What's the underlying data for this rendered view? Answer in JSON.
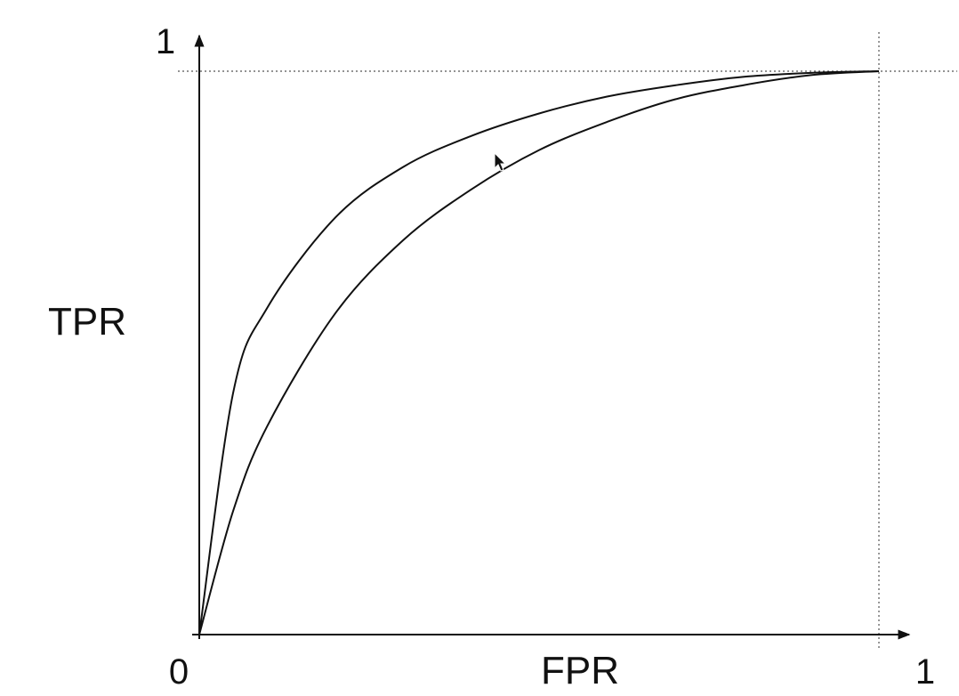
{
  "chart_data": {
    "type": "line",
    "title": "",
    "xlabel": "FPR",
    "ylabel": "TPR",
    "xlim": [
      0,
      1
    ],
    "ylim": [
      0,
      1
    ],
    "x_tick_labels": [
      "0",
      "1"
    ],
    "y_tick_labels": [
      "1"
    ],
    "grid": false,
    "reference_lines": [
      {
        "orientation": "horizontal",
        "value": 1,
        "style": "dotted"
      },
      {
        "orientation": "vertical",
        "value": 1,
        "style": "dotted"
      }
    ],
    "series": [
      {
        "x": [
          0,
          0.05,
          0.1,
          0.2,
          0.3,
          0.4,
          0.5,
          0.6,
          0.7,
          0.8,
          0.9,
          1
        ],
        "y": [
          0,
          0.43,
          0.58,
          0.74,
          0.83,
          0.885,
          0.925,
          0.955,
          0.975,
          0.99,
          0.997,
          1
        ]
      },
      {
        "x": [
          0,
          0.05,
          0.1,
          0.2,
          0.3,
          0.4,
          0.5,
          0.6,
          0.7,
          0.8,
          0.9,
          1
        ],
        "y": [
          0,
          0.22,
          0.37,
          0.57,
          0.7,
          0.79,
          0.86,
          0.91,
          0.95,
          0.975,
          0.993,
          1
        ]
      }
    ],
    "colors": {
      "axis": "#111111",
      "curve": "#111111",
      "guide": "#555555",
      "background": "#ffffff"
    }
  }
}
